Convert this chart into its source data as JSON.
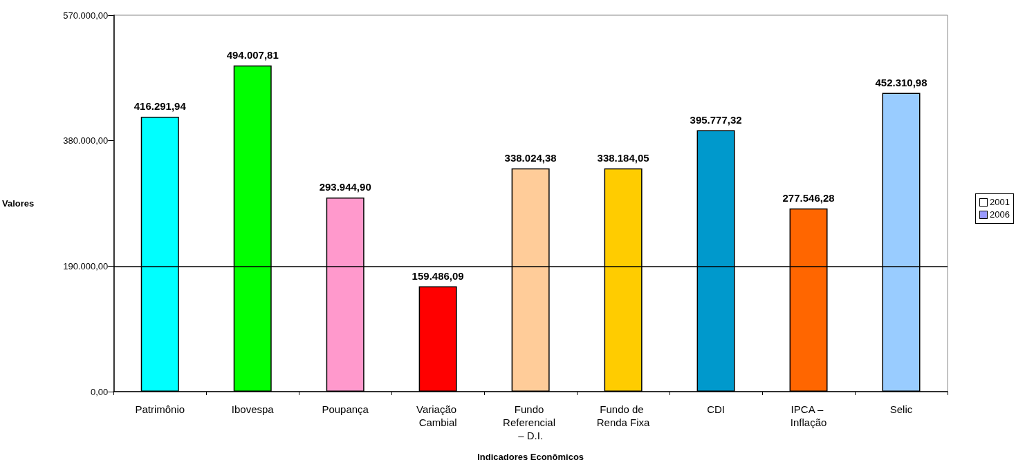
{
  "chart_data": {
    "type": "bar",
    "xlabel": "Indicadores Econômicos",
    "ylabel": "Valores",
    "categories": [
      "Patrimônio",
      "Ibovespa",
      "Poupança",
      "Variação Cambial",
      "Fundo Referencial – D.I.",
      "Fundo de Renda Fixa",
      "CDI",
      "IPCA – Inflação",
      "Selic"
    ],
    "series": [
      {
        "name": "2001",
        "color": "#ffffff",
        "values": [
          null,
          null,
          null,
          null,
          null,
          null,
          null,
          null,
          null
        ]
      },
      {
        "name": "2006",
        "color": "#9999ff",
        "colors": [
          "#00ffff",
          "#00ff00",
          "#ff99cc",
          "#ff0000",
          "#ffcc99",
          "#ffcc00",
          "#0099cc",
          "#ff6600",
          "#99ccff"
        ],
        "values": [
          416291.94,
          494007.81,
          293944.9,
          159486.09,
          338024.38,
          338184.05,
          395777.32,
          277546.28,
          452310.98
        ],
        "value_labels": [
          "416.291,94",
          "494.007,81",
          "293.944,90",
          "159.486,09",
          "338.024,38",
          "338.184,05",
          "395.777,32",
          "277.546,28",
          "452.310,98"
        ]
      }
    ],
    "ylim": [
      0,
      570000
    ],
    "yticks": [
      {
        "value": 0,
        "label": "0,00"
      },
      {
        "value": 190000,
        "label": "190.000,00"
      },
      {
        "value": 380000,
        "label": "380.000,00"
      },
      {
        "value": 570000,
        "label": "570.000,00"
      }
    ],
    "ref_lines": [
      {
        "axis": "y",
        "value": 190000,
        "color": "#000000"
      }
    ],
    "grid": false,
    "legend": "right"
  }
}
